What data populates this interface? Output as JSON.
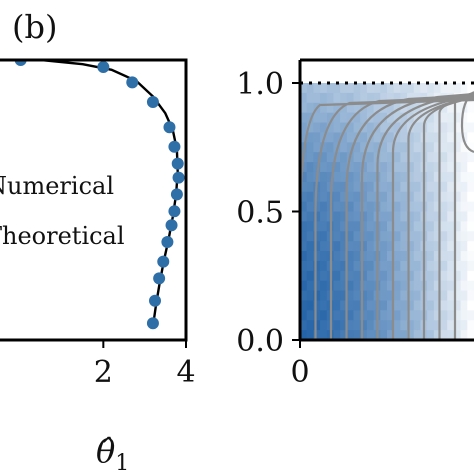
{
  "panel_label": "(b)",
  "chart_data": [
    {
      "type": "scatter",
      "xlabel": "θ̂",
      "xlabel_sub": "1",
      "xlim": [
        -0.5,
        4.0
      ],
      "ylim": [
        0,
        1
      ],
      "x_ticks": [
        {
          "value": 2,
          "label": "2"
        },
        {
          "value": 4,
          "label": "4"
        }
      ],
      "legend": {
        "placement": "middle-left",
        "entries": [
          "Numerical",
          "Theoretical"
        ]
      },
      "series": [
        {
          "name": "Numerical",
          "style": "markers",
          "color": "#2f6fa8",
          "x": [
            0.0,
            2.0,
            2.7,
            3.2,
            3.6,
            3.72,
            3.8,
            3.82,
            3.78,
            3.72,
            3.65,
            3.55,
            3.45,
            3.35,
            3.25,
            3.2
          ],
          "y": [
            1.0,
            0.975,
            0.92,
            0.85,
            0.76,
            0.69,
            0.63,
            0.58,
            0.52,
            0.46,
            0.41,
            0.35,
            0.28,
            0.22,
            0.14,
            0.06
          ]
        },
        {
          "name": "Theoretical",
          "style": "line",
          "color": "#000000",
          "x": [
            -0.3,
            0.5,
            1.5,
            2.2,
            2.8,
            3.2,
            3.5,
            3.68,
            3.78,
            3.8,
            3.76,
            3.68,
            3.58,
            3.46,
            3.36,
            3.28,
            3.22,
            3.2
          ],
          "y": [
            1.01,
            1.0,
            0.985,
            0.965,
            0.925,
            0.87,
            0.81,
            0.75,
            0.68,
            0.6,
            0.52,
            0.44,
            0.36,
            0.28,
            0.2,
            0.13,
            0.07,
            0.04
          ]
        }
      ]
    },
    {
      "type": "heatmap",
      "xlim": [
        0,
        1
      ],
      "ylim": [
        0,
        1.1
      ],
      "x_ticks": [
        {
          "value": 0,
          "label": "0"
        }
      ],
      "y_ticks": [
        {
          "value": 0.0,
          "label": "0.0"
        },
        {
          "value": 0.5,
          "label": "0.5"
        },
        {
          "value": 1.0,
          "label": "1.0"
        }
      ],
      "colors": {
        "high": "#1e5fa5",
        "low": "#ffffff",
        "contour": "#8c8c8c"
      },
      "reference_line": {
        "y": 1.0,
        "style": "dotted"
      },
      "contour_levels": 11
    }
  ]
}
